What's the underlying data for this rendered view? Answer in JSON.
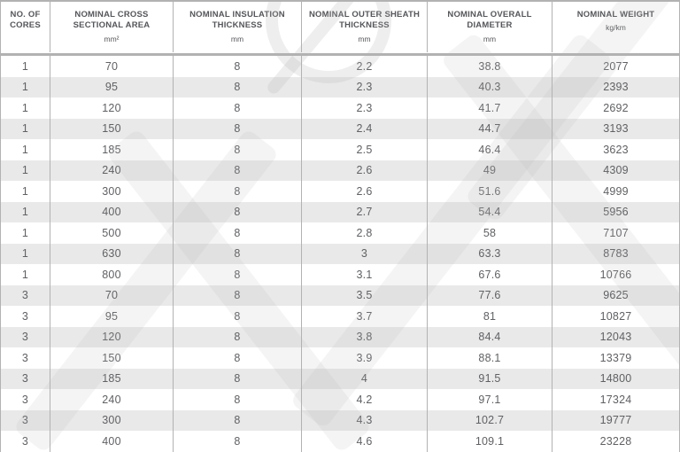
{
  "chart_data": {
    "type": "table",
    "columns": [
      {
        "key": "cores",
        "title": "NO. OF CORES",
        "unit": ""
      },
      {
        "key": "cross_section",
        "title": "NOMINAL CROSS SECTIONAL AREA",
        "unit": "mm²"
      },
      {
        "key": "insulation",
        "title": "NOMINAL INSULATION THICKNESS",
        "unit": "mm"
      },
      {
        "key": "outer_sheath",
        "title": "NOMINAL OUTER SHEATH THICKNESS",
        "unit": "mm"
      },
      {
        "key": "overall_diameter",
        "title": "NOMINAL OVERALL DIAMETER",
        "unit": "mm"
      },
      {
        "key": "weight",
        "title": "NOMINAL WEIGHT",
        "unit": "kg/km"
      }
    ],
    "rows": [
      [
        "1",
        "70",
        "8",
        "2.2",
        "38.8",
        "2077"
      ],
      [
        "1",
        "95",
        "8",
        "2.3",
        "40.3",
        "2393"
      ],
      [
        "1",
        "120",
        "8",
        "2.3",
        "41.7",
        "2692"
      ],
      [
        "1",
        "150",
        "8",
        "2.4",
        "44.7",
        "3193"
      ],
      [
        "1",
        "185",
        "8",
        "2.5",
        "46.4",
        "3623"
      ],
      [
        "1",
        "240",
        "8",
        "2.6",
        "49",
        "4309"
      ],
      [
        "1",
        "300",
        "8",
        "2.6",
        "51.6",
        "4999"
      ],
      [
        "1",
        "400",
        "8",
        "2.7",
        "54.4",
        "5956"
      ],
      [
        "1",
        "500",
        "8",
        "2.8",
        "58",
        "7107"
      ],
      [
        "1",
        "630",
        "8",
        "3",
        "63.3",
        "8783"
      ],
      [
        "1",
        "800",
        "8",
        "3.1",
        "67.6",
        "10766"
      ],
      [
        "3",
        "70",
        "8",
        "3.5",
        "77.6",
        "9625"
      ],
      [
        "3",
        "95",
        "8",
        "3.7",
        "81",
        "10827"
      ],
      [
        "3",
        "120",
        "8",
        "3.8",
        "84.4",
        "12043"
      ],
      [
        "3",
        "150",
        "8",
        "3.9",
        "88.1",
        "13379"
      ],
      [
        "3",
        "185",
        "8",
        "4",
        "91.5",
        "14800"
      ],
      [
        "3",
        "240",
        "8",
        "4.2",
        "97.1",
        "17324"
      ],
      [
        "3",
        "300",
        "8",
        "4.3",
        "102.7",
        "19777"
      ],
      [
        "3",
        "400",
        "8",
        "4.6",
        "109.1",
        "23228"
      ]
    ]
  },
  "colors": {
    "stripe": "#e9e9e9",
    "divider": "#b2b2b2",
    "header_text": "#55565a",
    "body_text": "#606164",
    "wm_strong": "rgba(178,178,178,0.22)",
    "wm_soft": "rgba(178,178,178,0.15)"
  }
}
